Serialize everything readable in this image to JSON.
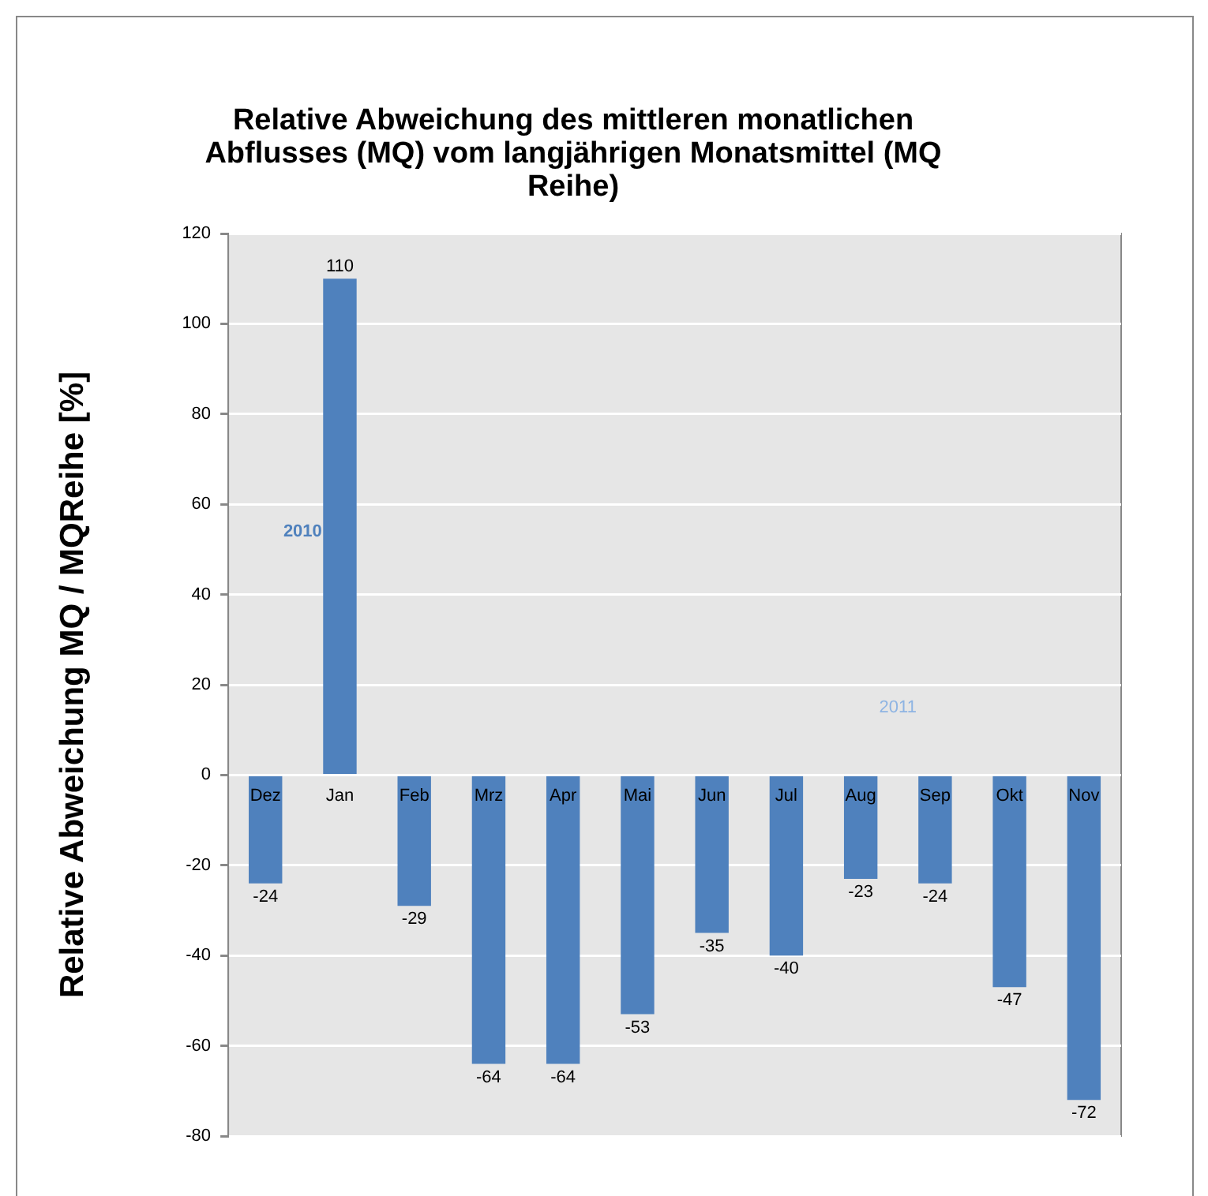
{
  "chart_data": {
    "type": "bar",
    "title": "Relative Abweichung des mittleren monatlichen Abflusses (MQ) vom langjährigen Monatsmittel (MQ Reihe)",
    "ylabel": "Relative Abweichung MQ / MQReihe [%]",
    "categories": [
      "Dez",
      "Jan",
      "Feb",
      "Mrz",
      "Apr",
      "Mai",
      "Jun",
      "Jul",
      "Aug",
      "Sep",
      "Okt",
      "Nov"
    ],
    "values": [
      -24,
      110,
      -29,
      -64,
      -64,
      -53,
      -35,
      -40,
      -23,
      -24,
      -47,
      -72
    ],
    "color": "#4f81bd",
    "ylim": [
      -80,
      120
    ],
    "yticks": [
      -80,
      -60,
      -40,
      -20,
      0,
      20,
      40,
      60,
      80,
      100,
      120
    ],
    "grid": "y",
    "data_labels": true,
    "annotations": [
      "2010",
      "2011"
    ]
  }
}
